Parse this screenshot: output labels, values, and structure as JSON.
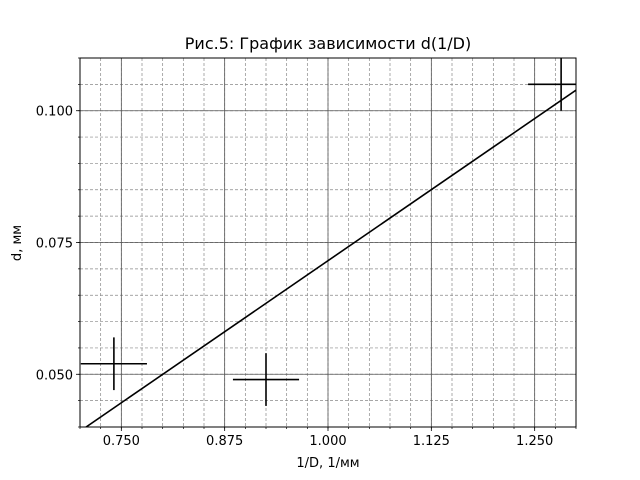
{
  "chart_data": {
    "type": "scatter",
    "title": "Рис.5: График зависимости d(1/D)",
    "xlabel": "1/D, 1/мм",
    "ylabel": "d, мм",
    "xlim": [
      0.7,
      1.3
    ],
    "ylim": [
      0.04,
      0.11
    ],
    "x_ticks": [
      0.75,
      0.875,
      1.0,
      1.125,
      1.25
    ],
    "x_tick_labels": [
      "0.750",
      "0.875",
      "1.000",
      "1.125",
      "1.250"
    ],
    "y_ticks": [
      0.05,
      0.075,
      0.1
    ],
    "y_tick_labels": [
      "0.050",
      "0.075",
      "0.100"
    ],
    "grid": true,
    "minor_grid": true,
    "points": [
      {
        "x": 0.741,
        "y": 0.052,
        "xerr": 0.04,
        "yerr": 0.005
      },
      {
        "x": 0.925,
        "y": 0.049,
        "xerr": 0.04,
        "yerr": 0.005
      },
      {
        "x": 1.282,
        "y": 0.105,
        "xerr": 0.04,
        "yerr": 0.005
      }
    ],
    "fit_line": {
      "x": [
        0.7,
        1.3
      ],
      "y": [
        0.0392,
        0.1039
      ]
    }
  }
}
